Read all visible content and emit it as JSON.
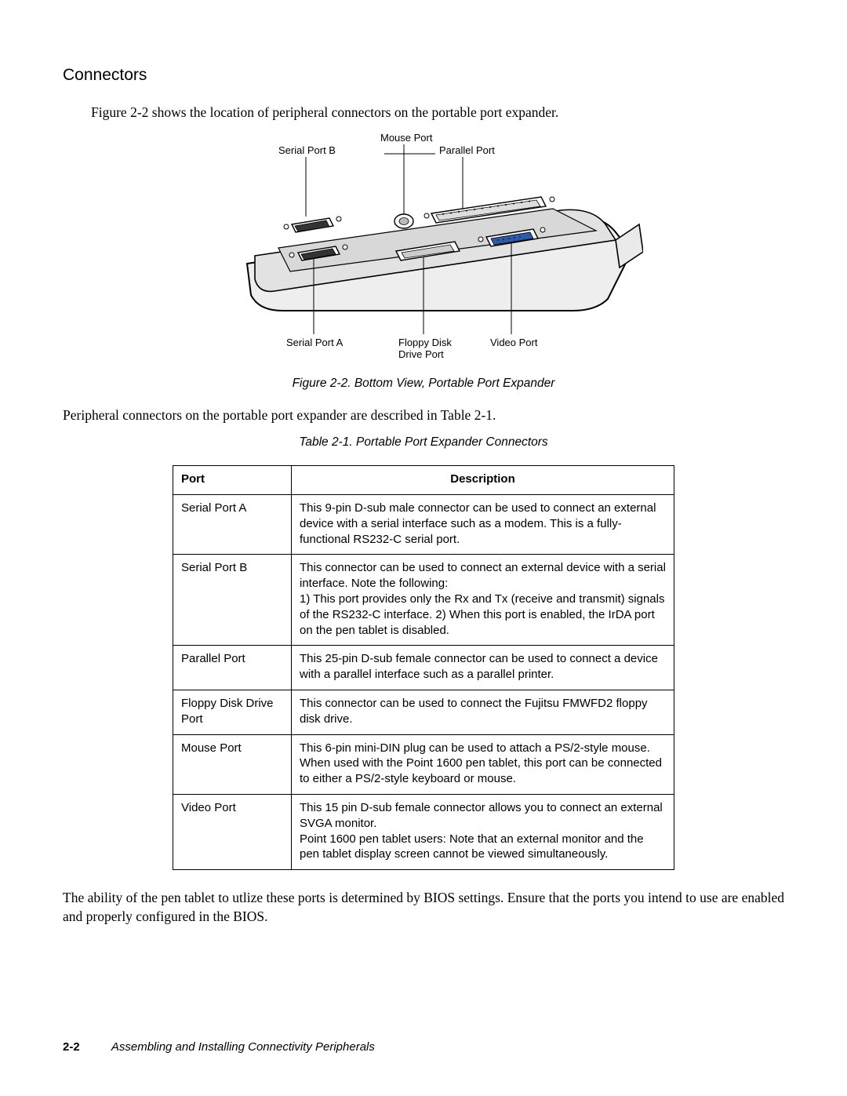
{
  "section_heading": "Connectors",
  "intro_text": "Figure 2-2 shows the location of peripheral connectors on the portable port expander.",
  "figure": {
    "top_labels": {
      "serial_port_b": "Serial Port B",
      "mouse_port": "Mouse Port",
      "parallel_port": "Parallel Port"
    },
    "bottom_labels": {
      "serial_port_a": "Serial Port A",
      "floppy": "Floppy Disk",
      "floppy2": "Drive Port",
      "video_port": "Video Port"
    },
    "caption": "Figure 2-2.  Bottom View, Portable Port Expander",
    "colors": {
      "stroke": "#000000",
      "fill_body": "#eeeeee",
      "fill_panel": "#d8d8d8",
      "fill_port": "#ffffff"
    }
  },
  "mid_text": "Peripheral connectors on the portable port expander are described in Table 2-1.",
  "table": {
    "caption": "Table 2-1.  Portable Port Expander Connectors",
    "headers": {
      "port": "Port",
      "description": "Description"
    },
    "rows": [
      {
        "port": "Serial Port A",
        "desc": "This 9-pin D-sub male connector can be used to connect an external device with a serial interface such as a modem. This is a fully-functional RS232-C serial port."
      },
      {
        "port": "Serial Port B",
        "desc": "This connector can be used to connect an external device with a serial interface. Note the following:\n1) This port provides only the Rx and Tx (receive and transmit) signals of the RS232-C interface. 2) When this port is enabled, the IrDA port on the pen tablet is disabled."
      },
      {
        "port": "Parallel Port",
        "desc": "This 25-pin D-sub female connector can be used to connect a device with a parallel interface such as a parallel printer."
      },
      {
        "port": "Floppy Disk Drive Port",
        "desc": "This connector can be used to connect the Fujitsu FMWFD2 floppy disk drive."
      },
      {
        "port": "Mouse Port",
        "desc": "This 6-pin mini-DIN plug can be used to attach a PS/2-style mouse. When used with the Point 1600 pen tablet, this port can be connected to either a PS/2-style keyboard or mouse."
      },
      {
        "port": "Video Port",
        "desc": "This 15 pin D-sub female connector allows you to connect an external SVGA monitor.\nPoint 1600 pen tablet users: Note that an external monitor and the pen tablet display screen cannot be viewed simultaneously."
      }
    ]
  },
  "closing_text": "The ability of the pen tablet to utlize these ports is determined by BIOS settings. Ensure that the ports you intend to use are enabled and properly configured in the BIOS.",
  "footer": {
    "page": "2-2",
    "title": "Assembling and Installing Connectivity Peripherals"
  }
}
